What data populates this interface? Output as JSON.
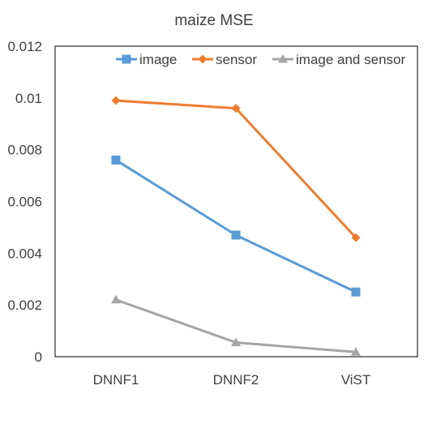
{
  "chart_data": {
    "type": "line",
    "title": "maize MSE",
    "categories": [
      "DNNF1",
      "DNNF2",
      "ViST"
    ],
    "y_ticks": [
      "0",
      "0.002",
      "0.004",
      "0.006",
      "0.008",
      "0.01",
      "0.012"
    ],
    "ylim": [
      0,
      0.012
    ],
    "grid": false,
    "legend_position": "top-right",
    "series": [
      {
        "name": "image",
        "values": [
          0.0076,
          0.0047,
          0.0025
        ],
        "color": "#5B9BD5",
        "marker": "square"
      },
      {
        "name": "sensor",
        "values": [
          0.0099,
          0.0096,
          0.0046
        ],
        "color": "#ED7D31",
        "marker": "diamond"
      },
      {
        "name": "image and sensor",
        "values": [
          0.0022,
          0.00055,
          0.00018
        ],
        "color": "#A5A5A5",
        "marker": "triangle"
      }
    ]
  }
}
